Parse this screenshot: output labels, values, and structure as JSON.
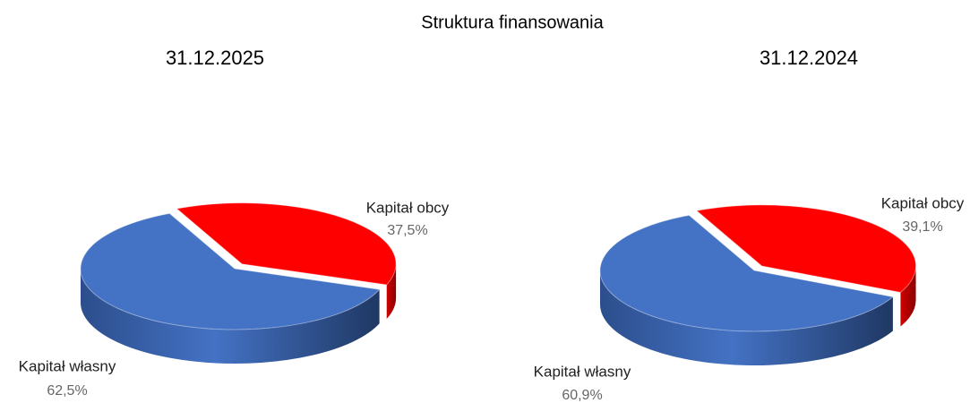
{
  "title": "Struktura finansowania",
  "chart_data": [
    {
      "type": "pie",
      "title": "31.12.2025",
      "categories": [
        "Kapitał własny",
        "Kapitał obcy"
      ],
      "values": [
        62.5,
        37.5
      ],
      "value_labels": [
        "62,5%",
        "37,5%"
      ],
      "colors": [
        "#4472c4",
        "#ff0000"
      ]
    },
    {
      "type": "pie",
      "title": "31.12.2024",
      "categories": [
        "Kapitał własny",
        "Kapitał obcy"
      ],
      "values": [
        60.9,
        39.1
      ],
      "value_labels": [
        "60,9%",
        "39,1%"
      ],
      "colors": [
        "#4472c4",
        "#ff0000"
      ]
    }
  ]
}
